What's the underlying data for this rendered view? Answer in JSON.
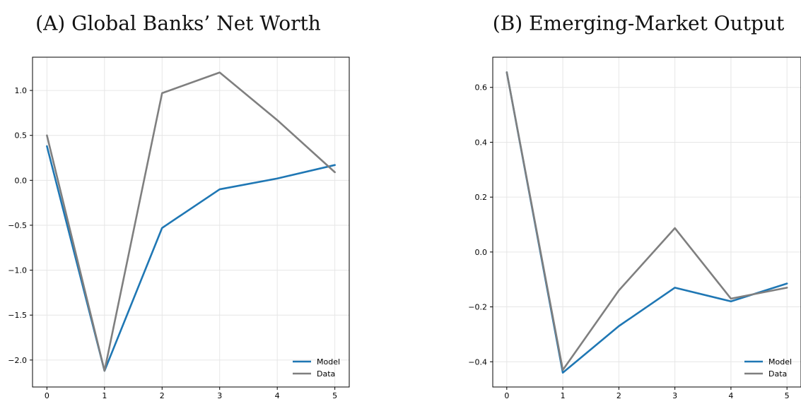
{
  "chart_data": [
    {
      "type": "line",
      "title": "(A) Global Banks’ Net Worth",
      "x": [
        0,
        1,
        2,
        3,
        4,
        5
      ],
      "xlim": [
        -0.25,
        5.25
      ],
      "ylim": [
        -2.3,
        1.37
      ],
      "xticks": [
        0,
        1,
        2,
        3,
        4,
        5
      ],
      "yticks": [
        -2.0,
        -1.5,
        -1.0,
        -0.5,
        0.0,
        0.5,
        1.0
      ],
      "ytick_labels": [
        "−2.0",
        "−1.5",
        "−1.0",
        "−0.5",
        "0.0",
        "0.5",
        "1.0"
      ],
      "grid": true,
      "legend_position": "bottom-right",
      "series": [
        {
          "name": "Model",
          "color": "#1f77b4",
          "values": [
            0.38,
            -2.12,
            -0.53,
            -0.1,
            0.02,
            0.17
          ]
        },
        {
          "name": "Data",
          "color": "#7f7f7f",
          "values": [
            0.5,
            -2.12,
            0.97,
            1.2,
            0.67,
            0.09
          ]
        }
      ]
    },
    {
      "type": "line",
      "title": "(B) Emerging-Market Output",
      "x": [
        0,
        1,
        2,
        3,
        4,
        5
      ],
      "xlim": [
        -0.25,
        5.25
      ],
      "ylim": [
        -0.492,
        0.71
      ],
      "xticks": [
        0,
        1,
        2,
        3,
        4,
        5
      ],
      "yticks": [
        -0.4,
        -0.2,
        0.0,
        0.2,
        0.4,
        0.6
      ],
      "ytick_labels": [
        "−0.4",
        "−0.2",
        "0.0",
        "0.2",
        "0.4",
        "0.6"
      ],
      "grid": true,
      "legend_position": "bottom-right",
      "series": [
        {
          "name": "Model",
          "color": "#1f77b4",
          "values": [
            0.655,
            -0.44,
            -0.27,
            -0.13,
            -0.18,
            -0.115
          ]
        },
        {
          "name": "Data",
          "color": "#7f7f7f",
          "values": [
            0.655,
            -0.43,
            -0.14,
            0.087,
            -0.17,
            -0.13
          ]
        }
      ]
    }
  ]
}
